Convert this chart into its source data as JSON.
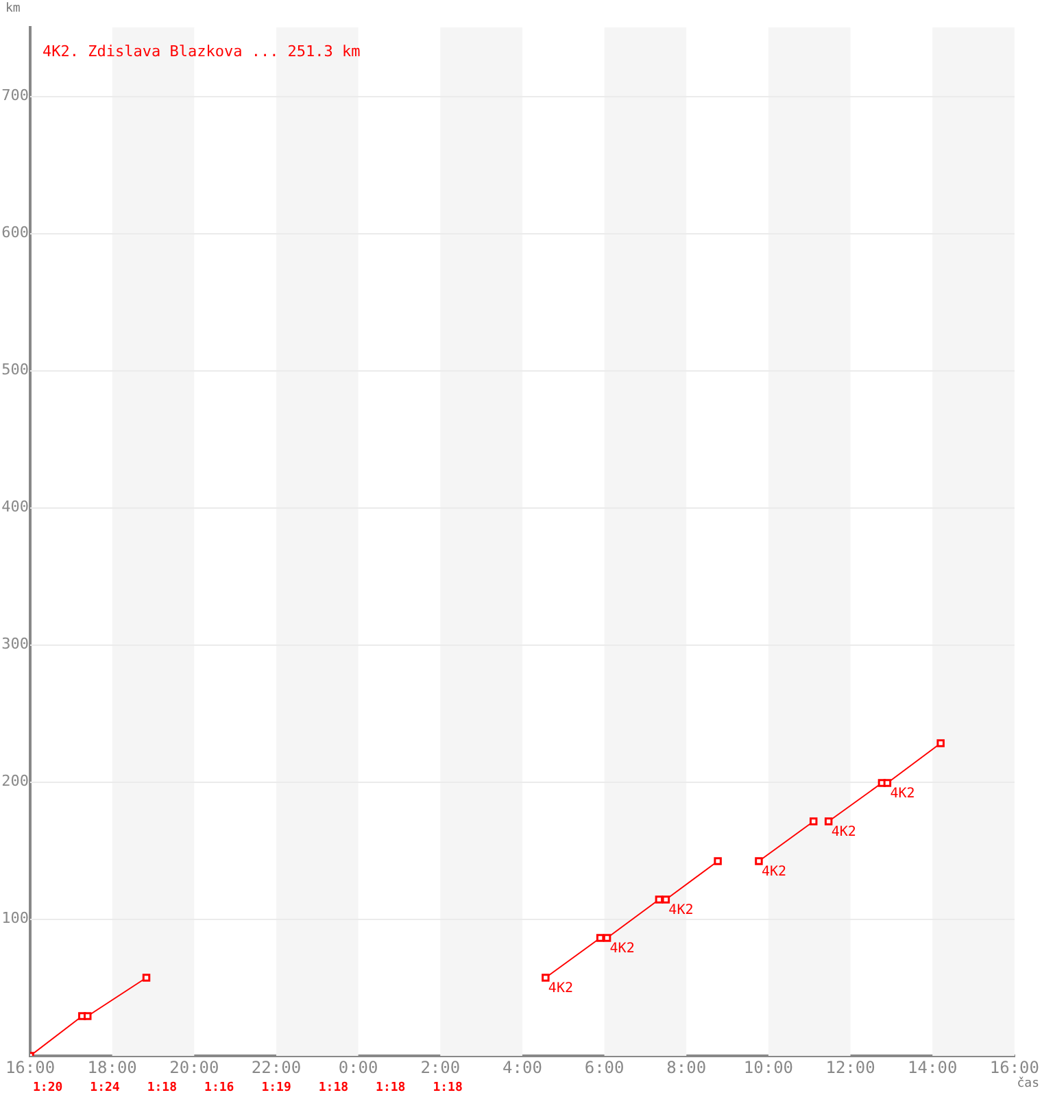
{
  "chart_data": {
    "type": "line",
    "title": "4K2. Zdislava Blazkova ... 251.3 km",
    "xlabel": "čas",
    "ylabel": "km",
    "x": [
      "2000-01-01T16:00",
      "2000-01-01T17:16",
      "2000-01-01T17:24",
      "2000-01-01T18:50",
      "2000-01-01T20:00",
      "2000-01-02T04:34",
      "2000-01-02T05:54",
      "2000-01-02T06:04",
      "2000-01-02T07:20",
      "2000-01-02T07:30",
      "2000-01-02T08:46",
      "2000-01-02T09:12",
      "2000-01-02T09:46",
      "2000-01-02T11:06",
      "2000-01-02T11:18",
      "2000-01-02T11:28",
      "2000-01-02T12:46",
      "2000-01-02T12:54",
      "2000-01-02T14:12"
    ],
    "series": [
      {
        "color": "#ff0000",
        "values": [
          0,
          29,
          29,
          57,
          null,
          57,
          86,
          86,
          114,
          114,
          142,
          null,
          142,
          171,
          null,
          171,
          199,
          199,
          228
        ]
      }
    ],
    "xlim": [
      "2000-01-01T16:00",
      "2000-01-02T16:00"
    ],
    "ylim": [
      0,
      750
    ],
    "xticks": [
      {
        "value": "2000-01-01T16:00",
        "label": "16:00"
      },
      {
        "value": "2000-01-01T18:00",
        "label": "18:00"
      },
      {
        "value": "2000-01-01T20:00",
        "label": "20:00"
      },
      {
        "value": "2000-01-01T22:00",
        "label": "22:00"
      },
      {
        "value": "2000-01-02T00:00",
        "label": "0:00"
      },
      {
        "value": "2000-01-02T02:00",
        "label": "2:00"
      },
      {
        "value": "2000-01-02T04:00",
        "label": "4:00"
      },
      {
        "value": "2000-01-02T06:00",
        "label": "6:00"
      },
      {
        "value": "2000-01-02T08:00",
        "label": "8:00"
      },
      {
        "value": "2000-01-02T10:00",
        "label": "10:00"
      },
      {
        "value": "2000-01-02T12:00",
        "label": "12:00"
      },
      {
        "value": "2000-01-02T14:00",
        "label": "14:00"
      },
      {
        "value": "2000-01-02T16:00",
        "label": "16:00"
      }
    ],
    "yticks": [
      100,
      200,
      300,
      400,
      500,
      600,
      700
    ],
    "grid": "y",
    "marker": "square",
    "line_style": "solid",
    "bands": [
      {
        "axis": "x",
        "from": "2000-01-01T18:00",
        "to": "2000-01-01T20:00",
        "color": "#f5f5f5"
      },
      {
        "axis": "x",
        "from": "2000-01-01T22:00",
        "to": "2000-01-02T00:00",
        "color": "#f5f5f5"
      },
      {
        "axis": "x",
        "from": "2000-01-02T02:00",
        "to": "2000-01-02T04:00",
        "color": "#f5f5f5"
      },
      {
        "axis": "x",
        "from": "2000-01-02T06:00",
        "to": "2000-01-02T08:00",
        "color": "#f5f5f5"
      },
      {
        "axis": "x",
        "from": "2000-01-02T10:00",
        "to": "2000-01-02T12:00",
        "color": "#f5f5f5"
      },
      {
        "axis": "x",
        "from": "2000-01-02T14:00",
        "to": "2000-01-02T16:00",
        "color": "#f5f5f5"
      }
    ],
    "annotations": [
      {
        "text": "4K2",
        "x": "2000-01-02T04:34",
        "y": 57
      },
      {
        "text": "4K2",
        "x": "2000-01-02T06:04",
        "y": 86
      },
      {
        "text": "4K2",
        "x": "2000-01-02T07:30",
        "y": 114
      },
      {
        "text": "4K2",
        "x": "2000-01-02T09:46",
        "y": 142
      },
      {
        "text": "4K2",
        "x": "2000-01-02T11:28",
        "y": 171
      },
      {
        "text": "4K2",
        "x": "2000-01-02T12:54",
        "y": 199
      },
      "1:20",
      "1:24",
      "1:18",
      "1:16",
      "1:19",
      "1:18",
      "1:18",
      "1:18"
    ]
  }
}
